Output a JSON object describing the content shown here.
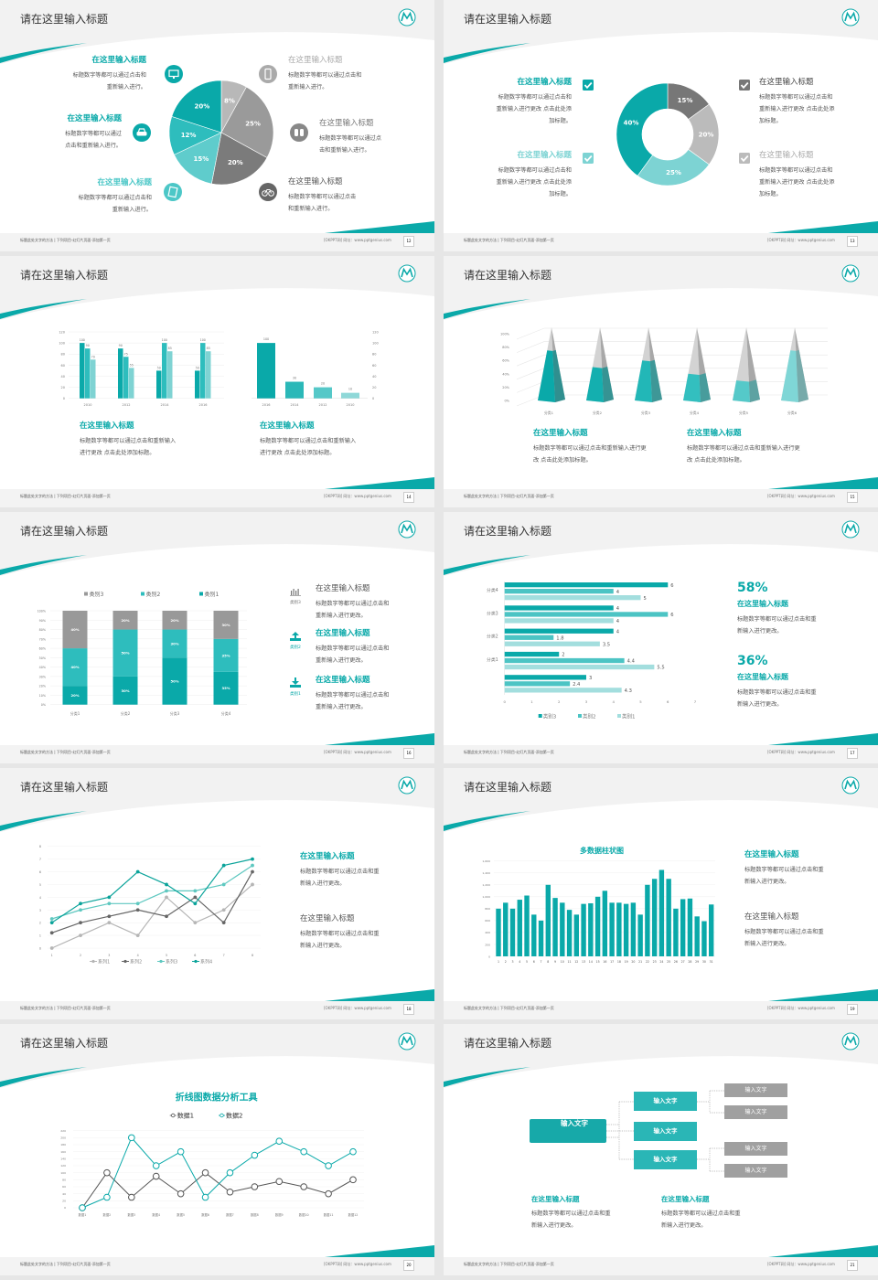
{
  "colors": {
    "teal": "#0aa9a9",
    "teal_mid": "#2ebdbd",
    "teal_light": "#7fd3d3",
    "teal_pale": "#a3dede",
    "gray_dark": "#666666",
    "gray": "#999999",
    "gray_light": "#bbbbbb",
    "leaf_gray": "#a0a0a0"
  },
  "footer": {
    "left": "标题此处文字的方法 | 下列项目-幻灯片页面-添加第一页",
    "right": "[OKPPT网]  网址：www.pptgenius.com"
  },
  "slides": [
    {
      "page": "12",
      "title": "请在这里输入标题",
      "items": [
        {
          "heading": "在这里输入标题",
          "body": "标题数字等都可以通过点击和\n重新输入进行。",
          "icon": "monitor-icon"
        },
        {
          "heading": "在这里输入标题",
          "body": "标题数字等都可以通过\n点击和重新输入进行。",
          "icon": "car-icon"
        },
        {
          "heading": "在这里输入标题",
          "body": "标题数字等都可以通过点击和\n重新输入进行。",
          "icon": "book-icon"
        },
        {
          "heading": "在这里输入标题",
          "body": "标题数字等都可以通过点击和\n重新输入进行。",
          "icon": "phone-icon"
        },
        {
          "heading": "在这里输入标题",
          "body": "标题数字等都可以通过点\n击和重新输入进行。",
          "icon": "binoculars-icon"
        },
        {
          "heading": "在这里输入标题",
          "body": "标题数字等都可以通过点击\n和重新输入进行。",
          "icon": "bicycle-icon"
        }
      ]
    },
    {
      "page": "13",
      "title": "请在这里输入标题",
      "items": [
        {
          "heading": "在这里输入标题",
          "body": "标题数字等都可以通过点击和\n重新输入进行更改 点击此处添\n加标题。",
          "icon": "checkbox-checked-icon"
        },
        {
          "heading": "在这里输入标题",
          "body": "标题数字等都可以通过点击和\n重新输入进行更改 点击此处添\n加标题。",
          "icon": "checkbox-checked-icon"
        },
        {
          "heading": "在这里输入标题",
          "body": "标题数字等都可以通过点击和\n重新输入进行更改 点击此处添\n加标题。",
          "icon": "checkbox-checked-icon"
        },
        {
          "heading": "在这里输入标题",
          "body": "标题数字等都可以通过点击和\n重新输入进行更改 点击此处添\n加标题。",
          "icon": "checkbox-checked-icon"
        }
      ]
    },
    {
      "page": "14",
      "title": "请在这里输入标题",
      "items": [
        {
          "heading": "在这里输入标题",
          "body": "标题数字等都可以通过点击和重新输入\n进行更改 点击此处添加标题。"
        },
        {
          "heading": "在这里输入标题",
          "body": "标题数字等都可以通过点击和重新输入\n进行更改 点击此处添加标题。"
        }
      ]
    },
    {
      "page": "15",
      "title": "请在这里输入标题",
      "items": [
        {
          "heading": "在这里输入标题",
          "body": "标题数字等都可以通过点击和重新输入进行更\n改 点击此处添加标题。"
        },
        {
          "heading": "在这里输入标题",
          "body": "标题数字等都可以通过点击和重新输入进行更\n改 点击此处添加标题。"
        }
      ]
    },
    {
      "page": "16",
      "title": "请在这里输入标题",
      "items": [
        {
          "heading": "在这里输入标题",
          "body": "标题数字等都可以通过点击和\n重新输入进行更改。",
          "icon": "bar-chart-icon",
          "icon_label": "类别3"
        },
        {
          "heading": "在这里输入标题",
          "body": "标题数字等都可以通过点击和\n重新输入进行更改。",
          "icon": "upload-icon",
          "icon_label": "类别2"
        },
        {
          "heading": "在这里输入标题",
          "body": "标题数字等都可以通过点击和\n重新输入进行更改。",
          "icon": "download-icon",
          "icon_label": "类别1"
        }
      ]
    },
    {
      "page": "17",
      "title": "请在这里输入标题",
      "items": [
        {
          "stat": "58%",
          "heading": "在这里输入标题",
          "body": "标题数字等都可以通过点击和重\n新输入进行更改。"
        },
        {
          "stat": "36%",
          "heading": "在这里输入标题",
          "body": "标题数字等都可以通过点击和重\n新输入进行更改。"
        }
      ]
    },
    {
      "page": "18",
      "title": "请在这里输入标题",
      "items": [
        {
          "heading": "在这里输入标题",
          "body": "标题数字等都可以通过点击和重\n新输入进行更改。"
        },
        {
          "heading": "在这里输入标题",
          "body": "标题数字等都可以通过点击和重\n新输入进行更改。"
        }
      ]
    },
    {
      "page": "19",
      "title": "请在这里输入标题",
      "items": [
        {
          "heading": "在这里输入标题",
          "body": "标题数字等都可以通过点击和重\n新输入进行更改。"
        },
        {
          "heading": "在这里输入标题",
          "body": "标题数字等都可以通过点击和重\n新输入进行更改。"
        }
      ]
    },
    {
      "page": "20",
      "title": "请在这里输入标题"
    },
    {
      "page": "21",
      "title": "请在这里输入标题",
      "tree": {
        "root": "输入文字",
        "children": [
          {
            "label": "输入文字",
            "leaves": [
              "输入文字",
              "输入文字"
            ]
          },
          {
            "label": "输入文字",
            "leaves": []
          },
          {
            "label": "输入文字",
            "leaves": [
              "输入文字",
              "输入文字"
            ]
          }
        ]
      },
      "items": [
        {
          "heading": "在这里输入标题",
          "body": "标题数字等都可以通过点击和重\n新输入进行更改。"
        },
        {
          "heading": "在这里输入标题",
          "body": "标题数字等都可以通过点击和重\n新输入进行更改。"
        }
      ]
    }
  ],
  "chart_data": [
    {
      "type": "pie",
      "values": [
        8,
        25,
        20,
        15,
        12,
        20
      ],
      "labels": [
        "8%",
        "25%",
        "20%",
        "15%",
        "12%",
        "20%"
      ],
      "colors": [
        "#b8b8b8",
        "#9a9a9a",
        "#7b7b7b",
        "#5fcccc",
        "#2ebdbd",
        "#0aa9a9"
      ]
    },
    {
      "type": "pie",
      "donut": true,
      "values": [
        15,
        20,
        25,
        40
      ],
      "labels": [
        "15%",
        "20%",
        "25%",
        "40%"
      ],
      "colors": [
        "#777777",
        "#bbbbbb",
        "#7dd3d3",
        "#0aa9a9"
      ]
    },
    {
      "type": "bar",
      "categories": [
        "2010",
        "2012",
        "2014",
        "2016"
      ],
      "ylim": [
        0,
        120
      ],
      "yticks": [
        "0",
        "20",
        "40",
        "60",
        "80",
        "100",
        "120"
      ],
      "series": [
        {
          "values": [
            100,
            90,
            50,
            50
          ],
          "labels": [
            "100",
            "90",
            "50",
            "50"
          ],
          "color": "#0aa9a9"
        },
        {
          "values": [
            90,
            75,
            100,
            100
          ],
          "labels": [
            "90",
            "75",
            "100",
            "100"
          ],
          "color": "#2ebdbd"
        },
        {
          "values": [
            70,
            55,
            85,
            85
          ],
          "labels": [
            "70",
            "55",
            "85",
            "85"
          ],
          "color": "#7fd3d3"
        }
      ]
    },
    {
      "type": "bar",
      "categories": [
        "2016",
        "2014",
        "2012",
        "2010"
      ],
      "values": [
        100,
        30,
        20,
        10
      ],
      "labels": [
        "100",
        "30",
        "20",
        "10"
      ],
      "ylim": [
        0,
        120
      ],
      "yticks": [
        "0",
        "20",
        "40",
        "60",
        "80",
        "100",
        "120"
      ],
      "colors": [
        "#0aa9a9",
        "#2bb8b8",
        "#55c8c8",
        "#8fd8d8"
      ],
      "axis": "right"
    },
    {
      "type": "bar",
      "style": "3d-pyramid",
      "categories": [
        "分类1",
        "分类2",
        "分类3",
        "分类4",
        "分类5",
        "分类6"
      ],
      "values": [
        75,
        50,
        60,
        40,
        30,
        75
      ],
      "ylim": [
        0,
        100
      ],
      "yticks": [
        "0%",
        "20%",
        "40%",
        "60%",
        "80%",
        "100%"
      ],
      "colors": [
        "#0aa9a9",
        "#14afaf",
        "#22b7b7",
        "#33bfbf",
        "#55c9c9",
        "#7fd6d6"
      ]
    },
    {
      "type": "bar",
      "stacked": true,
      "categories": [
        "分类1",
        "分类2",
        "分类3",
        "分类4"
      ],
      "ylim": [
        0,
        100
      ],
      "yticks": [
        "0%",
        "10%",
        "20%",
        "30%",
        "40%",
        "50%",
        "60%",
        "70%",
        "80%",
        "90%",
        "100%"
      ],
      "legend": [
        "类别3",
        "类别2",
        "类别1"
      ],
      "legend_position": "top",
      "series": [
        {
          "name": "类别1",
          "values": [
            20,
            30,
            50,
            35
          ],
          "labels": [
            "20%",
            "30%",
            "50%",
            "35%"
          ],
          "color": "#0aa9a9"
        },
        {
          "name": "类别2",
          "values": [
            40,
            50,
            30,
            35
          ],
          "labels": [
            "40%",
            "50%",
            "30%",
            "35%"
          ],
          "color": "#2ebdbd"
        },
        {
          "name": "类别3",
          "values": [
            40,
            20,
            20,
            30
          ],
          "labels": [
            "40%",
            "20%",
            "20%",
            "30%"
          ],
          "color": "#999999"
        }
      ]
    },
    {
      "type": "bar",
      "orientation": "horizontal",
      "categories": [
        "分类4",
        "分类3",
        "分类2",
        "分类1",
        ""
      ],
      "xlim": [
        0,
        7
      ],
      "xticks": [
        "0",
        "1",
        "2",
        "3",
        "4",
        "5",
        "6",
        "7"
      ],
      "legend_position": "bottom",
      "series": [
        {
          "name": "类别3",
          "values": [
            6,
            4,
            4,
            2,
            3
          ],
          "labels": [
            "6",
            "4",
            "4",
            "2",
            "3"
          ],
          "color": "#0aa9a9"
        },
        {
          "name": "类别2",
          "values": [
            4,
            6,
            1.8,
            4.4,
            2.4
          ],
          "labels": [
            "4",
            "6",
            "1.8",
            "4.4",
            "2.4"
          ],
          "color": "#4cc4c4"
        },
        {
          "name": "类别1",
          "values": [
            5,
            4,
            3.5,
            5.5,
            4.3
          ],
          "labels": [
            "5",
            "4",
            "3.5",
            "5.5",
            "4.3"
          ],
          "color": "#a3dede"
        }
      ]
    },
    {
      "type": "line",
      "x": [
        1,
        2,
        3,
        4,
        5,
        6,
        7,
        8
      ],
      "xticks": [
        "1",
        "2",
        "3",
        "4",
        "5",
        "6",
        "7",
        "8"
      ],
      "ylim": [
        0,
        8
      ],
      "yticks": [
        "0",
        "1",
        "2",
        "3",
        "4",
        "5",
        "6",
        "7",
        "8"
      ],
      "legend_position": "bottom",
      "series": [
        {
          "name": "系列1",
          "values": [
            0,
            1,
            2,
            1,
            4,
            2,
            3,
            5
          ],
          "color": "#b5b5b5"
        },
        {
          "name": "系列2",
          "values": [
            1.2,
            2,
            2.5,
            3,
            2.5,
            4,
            2,
            6
          ],
          "color": "#666666"
        },
        {
          "name": "系列3",
          "values": [
            2.3,
            3,
            3.5,
            3.5,
            4.5,
            4.5,
            5,
            6.5
          ],
          "color": "#5ec8c0"
        },
        {
          "name": "系列4",
          "values": [
            2,
            3.5,
            4,
            6,
            5,
            3.5,
            6.5,
            7
          ],
          "color": "#0aa39a"
        }
      ]
    },
    {
      "type": "bar",
      "title": "多数据柱状图",
      "categories": [
        "1",
        "2",
        "3",
        "4",
        "5",
        "6",
        "7",
        "8",
        "9",
        "10",
        "11",
        "12",
        "13",
        "14",
        "15",
        "16",
        "17",
        "18",
        "19",
        "20",
        "21",
        "22",
        "23",
        "24",
        "25",
        "26",
        "27",
        "28",
        "29",
        "30",
        "31"
      ],
      "values": [
        800,
        900,
        800,
        950,
        1020,
        700,
        600,
        1200,
        980,
        900,
        780,
        700,
        880,
        890,
        1000,
        1100,
        900,
        900,
        880,
        900,
        700,
        1200,
        1300,
        1450,
        1300,
        800,
        960,
        970,
        670,
        590,
        870
      ],
      "ylim": [
        0,
        1600
      ],
      "yticks": [
        "0",
        "200",
        "400",
        "600",
        "800",
        "1,000",
        "1,200",
        "1,400",
        "1,600"
      ],
      "color": "#0aa9a9"
    },
    {
      "type": "line",
      "title": "折线图数据分析工具",
      "categories": [
        "数据1",
        "数据2",
        "数据3",
        "数据4",
        "数据5",
        "数据6",
        "数据7",
        "数据8",
        "数据9",
        "数据10",
        "数据11",
        "数据12"
      ],
      "ylim": [
        0,
        220
      ],
      "yticks": [
        "0",
        "20",
        "40",
        "60",
        "80",
        "100",
        "120",
        "140",
        "160",
        "180",
        "200",
        "220"
      ],
      "legend_position": "top",
      "series": [
        {
          "name": "数据1",
          "values": [
            0,
            100,
            30,
            90,
            40,
            100,
            45,
            60,
            75,
            60,
            40,
            80
          ],
          "color": "#555555"
        },
        {
          "name": "数据2",
          "values": [
            0,
            30,
            200,
            120,
            160,
            30,
            100,
            150,
            190,
            160,
            120,
            160
          ],
          "color": "#0aa9a9"
        }
      ]
    }
  ]
}
